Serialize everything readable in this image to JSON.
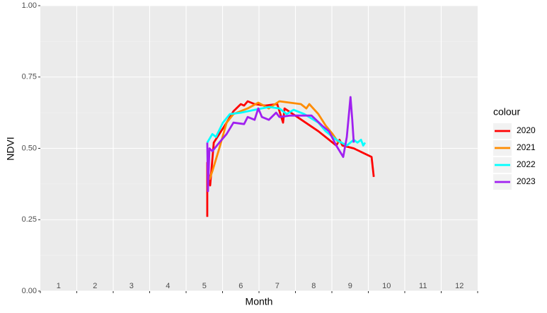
{
  "chart_data": {
    "type": "line",
    "x_label": "Month",
    "y_label": "NDVI",
    "legend_title": "colour",
    "legend_position": "right",
    "grid": true,
    "xlim": [
      0.5,
      12.5
    ],
    "xticks": [
      1,
      2,
      3,
      4,
      5,
      6,
      7,
      8,
      9,
      10,
      11,
      12
    ],
    "ylim": [
      0,
      1
    ],
    "yticks": [
      {
        "value": 0,
        "label": "0.00"
      },
      {
        "value": 0.25,
        "label": "0.25"
      },
      {
        "value": 0.5,
        "label": "0.50"
      },
      {
        "value": 0.75,
        "label": "0.75"
      },
      {
        "value": 1,
        "label": "1.00"
      }
    ],
    "series": [
      {
        "name": "2020",
        "color": "#ff0000",
        "x": [
          5.08,
          5.08,
          5.16,
          5.26,
          5.41,
          5.61,
          5.8,
          6.0,
          6.09,
          6.19,
          6.38,
          6.67,
          7.0,
          7.16,
          7.2,
          7.55,
          8.13,
          8.62,
          8.71,
          8.79,
          9.1,
          9.59,
          9.65
        ],
        "values": [
          0.26,
          0.45,
          0.37,
          0.52,
          0.55,
          0.59,
          0.63,
          0.655,
          0.65,
          0.665,
          0.655,
          0.65,
          0.655,
          0.59,
          0.64,
          0.61,
          0.56,
          0.51,
          0.53,
          0.51,
          0.5,
          0.47,
          0.4
        ]
      },
      {
        "name": "2021",
        "color": "#ff8c00",
        "x": [
          5.14,
          5.22,
          5.41,
          5.61,
          5.8,
          6.19,
          6.48,
          6.77,
          7.06,
          7.35,
          7.65,
          7.8,
          7.88,
          8.13,
          8.33,
          8.52,
          8.68
        ],
        "values": [
          0.39,
          0.42,
          0.5,
          0.59,
          0.62,
          0.64,
          0.66,
          0.64,
          0.665,
          0.66,
          0.655,
          0.64,
          0.655,
          0.62,
          0.58,
          0.55,
          0.52
        ]
      },
      {
        "name": "2022",
        "color": "#00ffff",
        "x": [
          5.08,
          5.22,
          5.32,
          5.51,
          5.7,
          6.0,
          6.38,
          6.77,
          7.06,
          7.26,
          7.45,
          7.74,
          8.13,
          8.33,
          8.62,
          8.91,
          9.1,
          9.2,
          9.3,
          9.36,
          9.41
        ],
        "values": [
          0.52,
          0.55,
          0.54,
          0.59,
          0.62,
          0.625,
          0.635,
          0.645,
          0.64,
          0.62,
          0.635,
          0.62,
          0.59,
          0.56,
          0.53,
          0.51,
          0.53,
          0.52,
          0.53,
          0.51,
          0.52
        ]
      },
      {
        "name": "2023",
        "color": "#a020f0",
        "x": [
          5.08,
          5.1,
          5.14,
          5.22,
          5.41,
          5.61,
          5.8,
          6.09,
          6.19,
          6.38,
          6.48,
          6.58,
          6.77,
          6.97,
          7.06,
          7.35,
          7.94,
          8.23,
          8.42,
          8.62,
          8.81,
          8.91,
          9.01,
          9.06,
          9.1
        ],
        "values": [
          0.52,
          0.35,
          0.5,
          0.49,
          0.52,
          0.55,
          0.59,
          0.585,
          0.61,
          0.6,
          0.64,
          0.61,
          0.6,
          0.625,
          0.61,
          0.615,
          0.615,
          0.58,
          0.56,
          0.51,
          0.47,
          0.54,
          0.68,
          0.6,
          0.52
        ]
      }
    ]
  }
}
